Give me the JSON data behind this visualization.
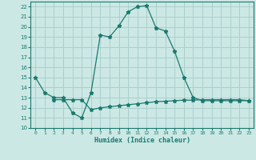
{
  "line1_x": [
    0,
    1,
    2,
    3,
    4,
    5,
    6,
    7,
    8,
    9,
    10,
    11,
    12,
    13,
    14,
    15,
    16,
    17,
    18,
    19,
    20,
    21,
    22,
    23
  ],
  "line1_y": [
    15.0,
    13.5,
    13.0,
    13.0,
    11.5,
    11.0,
    13.5,
    19.2,
    19.0,
    20.1,
    21.5,
    22.0,
    22.1,
    19.9,
    19.6,
    17.6,
    15.0,
    13.0,
    12.7,
    12.7,
    12.7,
    12.7,
    12.7,
    12.7
  ],
  "line2_x": [
    2,
    3,
    4,
    5,
    6,
    7,
    8,
    9,
    10,
    11,
    12,
    13,
    14,
    15,
    16,
    17,
    18,
    19,
    20,
    21,
    22,
    23
  ],
  "line2_y": [
    12.8,
    12.8,
    12.8,
    12.8,
    11.8,
    12.0,
    12.1,
    12.2,
    12.3,
    12.4,
    12.5,
    12.6,
    12.65,
    12.7,
    12.75,
    12.75,
    12.8,
    12.8,
    12.8,
    12.8,
    12.8,
    12.7
  ],
  "color": "#1a7a6e",
  "bg_color": "#cce8e5",
  "grid_color": "#aacfcc",
  "xlabel": "Humidex (Indice chaleur)",
  "xlim": [
    -0.5,
    23.5
  ],
  "ylim": [
    10,
    22.5
  ],
  "yticks": [
    10,
    11,
    12,
    13,
    14,
    15,
    16,
    17,
    18,
    19,
    20,
    21,
    22
  ],
  "xticks": [
    0,
    1,
    2,
    3,
    4,
    5,
    6,
    7,
    8,
    9,
    10,
    11,
    12,
    13,
    14,
    15,
    16,
    17,
    18,
    19,
    20,
    21,
    22,
    23
  ],
  "xtick_labels": [
    "0",
    "1",
    "2",
    "3",
    "4",
    "5",
    "6",
    "7",
    "8",
    "9",
    "10",
    "11",
    "12",
    "13",
    "14",
    "15",
    "16",
    "17",
    "18",
    "19",
    "20",
    "21",
    "22",
    "23"
  ]
}
